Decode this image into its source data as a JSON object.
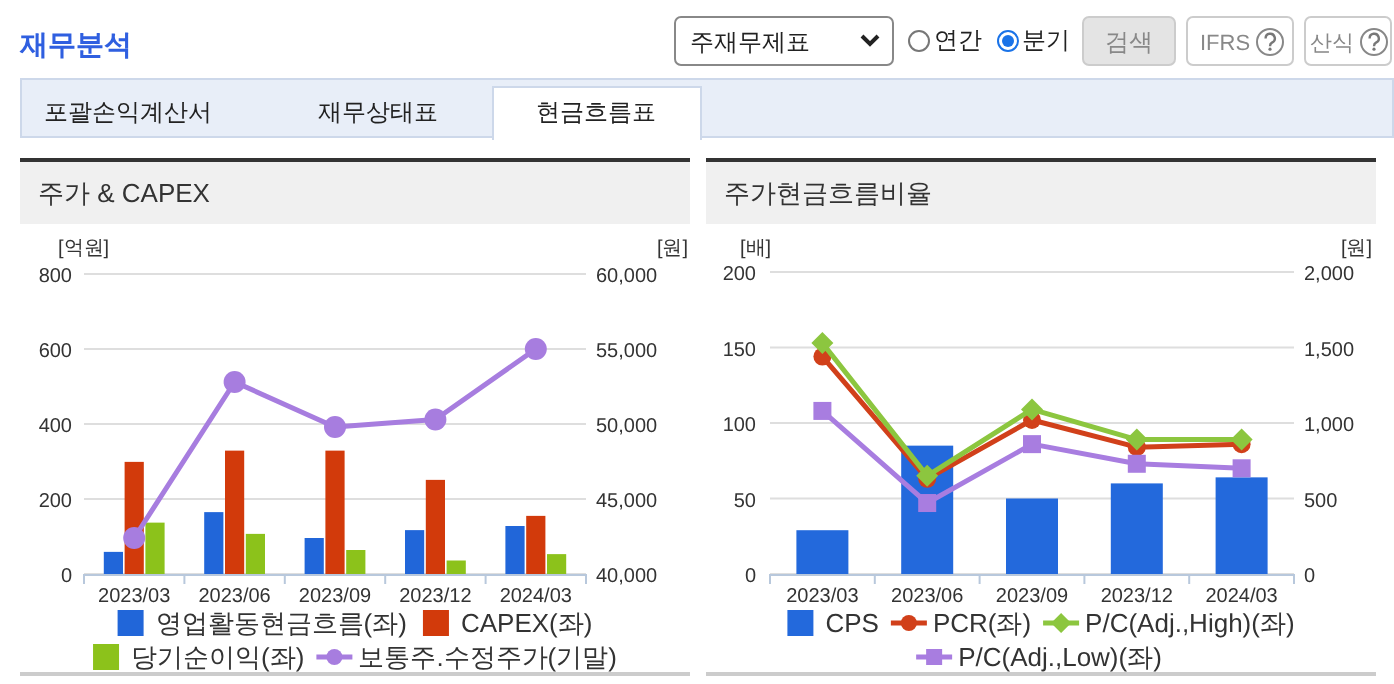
{
  "chart_data": [
    {
      "type": "other",
      "annotations": [
        "재무분석",
        "주재무제표",
        "연간",
        "분기",
        "검색",
        "IFRS",
        "산식",
        "포괄손익계산서",
        "재무상태표",
        "현금흐름표"
      ]
    },
    {
      "type": "bar",
      "title": "주가 & CAPEX",
      "ylabel": "[억원]",
      "y2label": "[원]",
      "categories": [
        "2023/03",
        "2023/06",
        "2023/09",
        "2023/12",
        "2024/03"
      ],
      "ylim": [
        0,
        800
      ],
      "yticks": [
        0,
        200,
        400,
        600,
        800
      ],
      "y2lim": [
        40000,
        60000
      ],
      "y2ticks": [
        {
          "value": 40000,
          "label": "40,000"
        },
        {
          "value": 45000,
          "label": "45,000"
        },
        {
          "value": 50000,
          "label": "50,000"
        },
        {
          "value": 55000,
          "label": "55,000"
        },
        {
          "value": 60000,
          "label": "60,000"
        }
      ],
      "grid": "y",
      "legend": "bottom",
      "series": [
        {
          "name": "영업활동현금흐름(좌)",
          "type": "bar",
          "color": "#2166d9",
          "values": [
            59,
            165,
            96,
            117,
            128
          ]
        },
        {
          "name": "CAPEX(좌)",
          "type": "bar",
          "color": "#d23a0b",
          "values": [
            299,
            329,
            329,
            251,
            155
          ]
        },
        {
          "name": "당기순이익(좌)",
          "type": "bar",
          "color": "#8cc21b",
          "values": [
            137,
            107,
            64,
            36,
            53
          ]
        },
        {
          "name": "보통주.수정주가(기말)",
          "type": "line",
          "axis": "y2",
          "marker": "circle",
          "color": "#a77ddf",
          "values": [
            42400,
            52800,
            49800,
            50300,
            55000
          ]
        }
      ]
    },
    {
      "type": "bar",
      "title": "주가현금흐름비율",
      "ylabel": "[배]",
      "y2label": "[원]",
      "categories": [
        "2023/03",
        "2023/06",
        "2023/09",
        "2023/12",
        "2024/03"
      ],
      "ylim": [
        0,
        200
      ],
      "yticks": [
        0,
        50,
        100,
        150,
        200
      ],
      "y2lim": [
        0,
        2000
      ],
      "y2ticks": [
        0,
        {
          "value": 500,
          "label": "500"
        },
        {
          "value": 1000,
          "label": "1,000"
        },
        {
          "value": 1500,
          "label": "1,500"
        },
        {
          "value": 2000,
          "label": "2,000"
        }
      ],
      "grid": "y",
      "legend": "bottom",
      "series": [
        {
          "name": "CPS",
          "type": "bar",
          "axis": "y2",
          "color": "#2369dc",
          "values": [
            290,
            850,
            500,
            600,
            640
          ]
        },
        {
          "name": "PCR(좌)",
          "type": "line",
          "marker": "circle",
          "color": "#d1401a",
          "values": [
            144,
            63,
            102,
            84,
            86
          ]
        },
        {
          "name": "P/C(Adj.,High)(좌)",
          "type": "line",
          "marker": "diamond",
          "color": "#8cc63f",
          "values": [
            153,
            65,
            109,
            89,
            89
          ]
        },
        {
          "name": "P/C(Adj.,Low)(좌)",
          "type": "line",
          "marker": "square",
          "color": "#a87de0",
          "values": [
            108,
            47,
            86,
            73,
            70
          ]
        }
      ]
    }
  ]
}
